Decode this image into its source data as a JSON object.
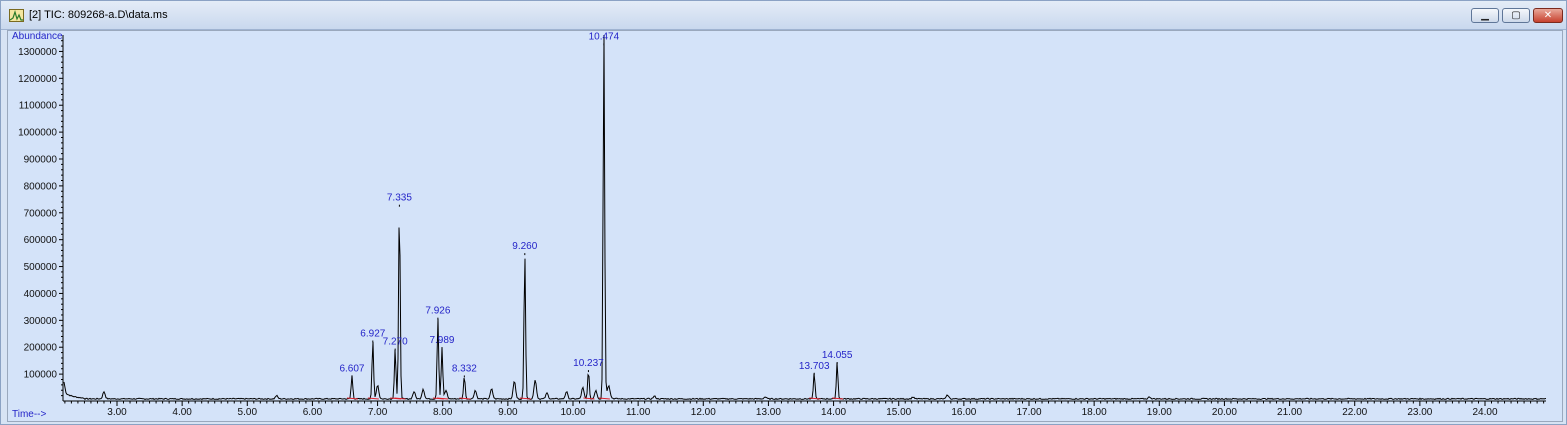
{
  "window": {
    "title": "[2] TIC: 809268-a.D\\data.ms",
    "icon": "chromatogram-app-icon",
    "controls": {
      "minimize": "minimize-icon",
      "maximize": "maximize-icon",
      "close": "close-icon"
    }
  },
  "colors": {
    "plot_bg": "#d4e3f9",
    "trace": "#000000",
    "peak_label": "#2424c8",
    "baseline_mark": "#e0202a"
  },
  "chart_data": {
    "type": "line",
    "title": "",
    "ylabel": "Abundance",
    "xlabel": "Time-->",
    "xlim": [
      2.15,
      25.0
    ],
    "ylim": [
      0,
      1350000
    ],
    "grid": false,
    "y_ticks": [
      100000,
      200000,
      300000,
      400000,
      500000,
      600000,
      700000,
      800000,
      900000,
      1000000,
      1100000,
      1200000,
      1300000
    ],
    "y_tick_labels": [
      "100000",
      "200000",
      "300000",
      "400000",
      "500000",
      "600000",
      "700000",
      "800000",
      "900000",
      "1000000",
      "1100000",
      "1200000",
      "1300000"
    ],
    "x_ticks": [
      3,
      4,
      5,
      6,
      7,
      8,
      9,
      10,
      11,
      12,
      13,
      14,
      15,
      16,
      17,
      18,
      19,
      20,
      21,
      22,
      23,
      24
    ],
    "x_tick_labels": [
      "3.00",
      "4.00",
      "5.00",
      "6.00",
      "7.00",
      "8.00",
      "9.00",
      "10.00",
      "11.00",
      "12.00",
      "13.00",
      "14.00",
      "15.00",
      "16.00",
      "17.00",
      "18.00",
      "19.00",
      "20.00",
      "21.00",
      "22.00",
      "23.00",
      "24.00"
    ],
    "baseline": 8000,
    "labeled_peaks": [
      {
        "label": "6.607",
        "x": 6.607,
        "y": 95000
      },
      {
        "label": "6.927",
        "x": 6.927,
        "y": 225000
      },
      {
        "label": "7.270",
        "x": 7.27,
        "y": 195000
      },
      {
        "label": "7.335",
        "x": 7.335,
        "y": 730000
      },
      {
        "label": "7.926",
        "x": 7.926,
        "y": 310000
      },
      {
        "label": "7.989",
        "x": 7.989,
        "y": 200000
      },
      {
        "label": "8.332",
        "x": 8.332,
        "y": 95000
      },
      {
        "label": "9.260",
        "x": 9.26,
        "y": 550000
      },
      {
        "label": "10.237",
        "x": 10.237,
        "y": 115000
      },
      {
        "label": "10.474",
        "x": 10.474,
        "y": 1330000
      },
      {
        "label": "13.703",
        "x": 13.703,
        "y": 105000
      },
      {
        "label": "14.055",
        "x": 14.055,
        "y": 145000
      }
    ],
    "minor_peaks": [
      {
        "x": 2.18,
        "y": 50000
      },
      {
        "x": 2.8,
        "y": 35000
      },
      {
        "x": 5.45,
        "y": 20000
      },
      {
        "x": 7.0,
        "y": 60000
      },
      {
        "x": 7.56,
        "y": 35000
      },
      {
        "x": 7.7,
        "y": 45000
      },
      {
        "x": 8.05,
        "y": 40000
      },
      {
        "x": 8.5,
        "y": 40000
      },
      {
        "x": 8.75,
        "y": 45000
      },
      {
        "x": 9.1,
        "y": 75000
      },
      {
        "x": 9.42,
        "y": 80000
      },
      {
        "x": 9.6,
        "y": 30000
      },
      {
        "x": 9.9,
        "y": 35000
      },
      {
        "x": 10.15,
        "y": 50000
      },
      {
        "x": 10.35,
        "y": 40000
      },
      {
        "x": 10.55,
        "y": 50000
      },
      {
        "x": 11.25,
        "y": 18000
      },
      {
        "x": 12.95,
        "y": 15000
      },
      {
        "x": 15.22,
        "y": 15000
      },
      {
        "x": 15.75,
        "y": 22000
      },
      {
        "x": 18.85,
        "y": 15000
      }
    ]
  }
}
